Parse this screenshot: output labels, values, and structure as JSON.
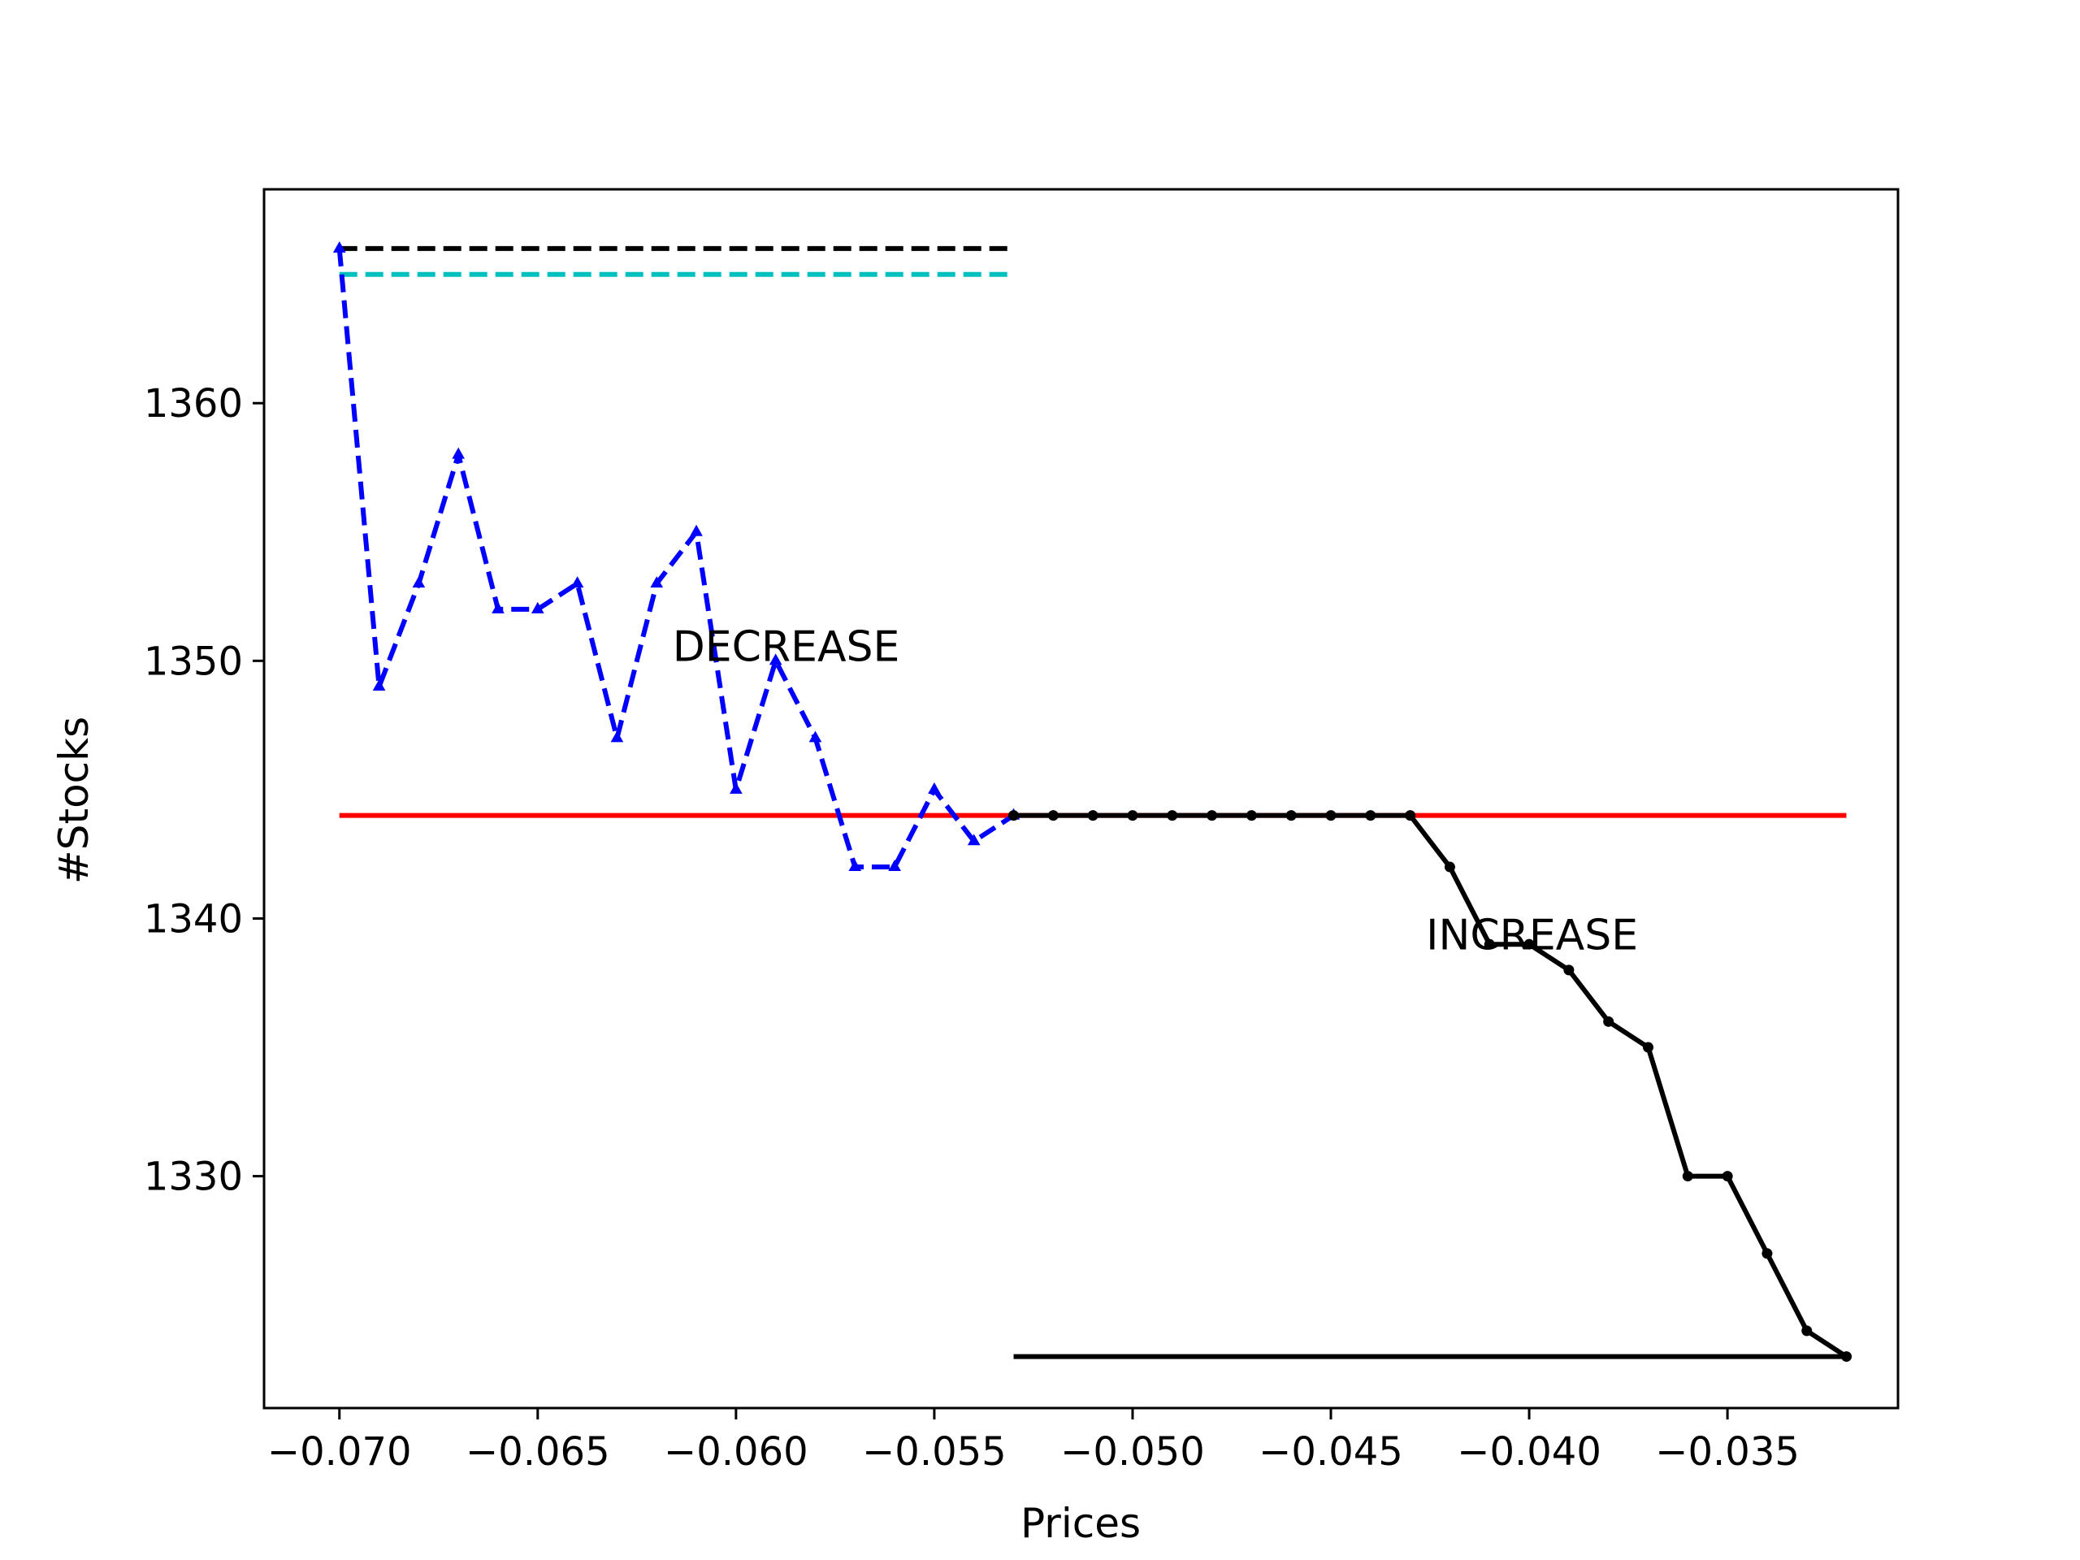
{
  "chart_data": {
    "type": "line",
    "title": "",
    "xlabel": "Prices",
    "ylabel": "#Stocks",
    "xlim": [
      -0.0719,
      -0.0307
    ],
    "ylim": [
      1321.0,
      1368.3
    ],
    "xticks": [
      -0.07,
      -0.065,
      -0.06,
      -0.055,
      -0.05,
      -0.045,
      -0.04,
      -0.035
    ],
    "xtick_labels": [
      "−0.070",
      "−0.065",
      "−0.060",
      "−0.055",
      "−0.050",
      "−0.045",
      "−0.040",
      "−0.035"
    ],
    "yticks": [
      1330,
      1340,
      1350,
      1360
    ],
    "ytick_labels": [
      "1330",
      "1340",
      "1350",
      "1360"
    ],
    "grid": false,
    "legend": "none",
    "annotations": [
      {
        "text": "DECREASE",
        "x": -0.0616,
        "y": 1350
      },
      {
        "text": "INCREASE",
        "x": -0.0426,
        "y": 1338.8
      }
    ],
    "series": [
      {
        "style": "dashed",
        "color": "#000000",
        "marker": "none",
        "x": [
          -0.07,
          -0.053
        ],
        "y": [
          1366,
          1366
        ]
      },
      {
        "style": "dashed",
        "color": "#00bfbf",
        "marker": "none",
        "x": [
          -0.07,
          -0.053
        ],
        "y": [
          1365,
          1365
        ]
      },
      {
        "style": "solid",
        "color": "#ff0000",
        "marker": "none",
        "x": [
          -0.07,
          -0.032
        ],
        "y": [
          1344,
          1344
        ]
      },
      {
        "style": "dashed",
        "color": "#0000ff",
        "marker": "triangle",
        "x": [
          -0.07,
          -0.069,
          -0.068,
          -0.067,
          -0.066,
          -0.065,
          -0.064,
          -0.063,
          -0.062,
          -0.061,
          -0.06,
          -0.059,
          -0.058,
          -0.057,
          -0.056,
          -0.055,
          -0.054,
          -0.053
        ],
        "y": [
          1366,
          1349,
          1353,
          1358,
          1352,
          1352,
          1353,
          1347,
          1353,
          1355,
          1345,
          1350,
          1347,
          1342,
          1342,
          1345,
          1343,
          1344
        ]
      },
      {
        "style": "solid",
        "color": "#000000",
        "marker": "dot",
        "x": [
          -0.053,
          -0.052,
          -0.051,
          -0.05,
          -0.049,
          -0.048,
          -0.047,
          -0.046,
          -0.045,
          -0.044,
          -0.043,
          -0.042,
          -0.041,
          -0.04,
          -0.039,
          -0.038,
          -0.037,
          -0.036,
          -0.035,
          -0.034,
          -0.033,
          -0.032
        ],
        "y": [
          1344,
          1344,
          1344,
          1344,
          1344,
          1344,
          1344,
          1344,
          1344,
          1344,
          1344,
          1342,
          1339,
          1339,
          1338,
          1336,
          1335,
          1330,
          1330,
          1327,
          1324,
          1323
        ]
      },
      {
        "style": "solid",
        "color": "#000000",
        "marker": "none",
        "x": [
          -0.053,
          -0.032
        ],
        "y": [
          1323,
          1323
        ]
      }
    ]
  }
}
